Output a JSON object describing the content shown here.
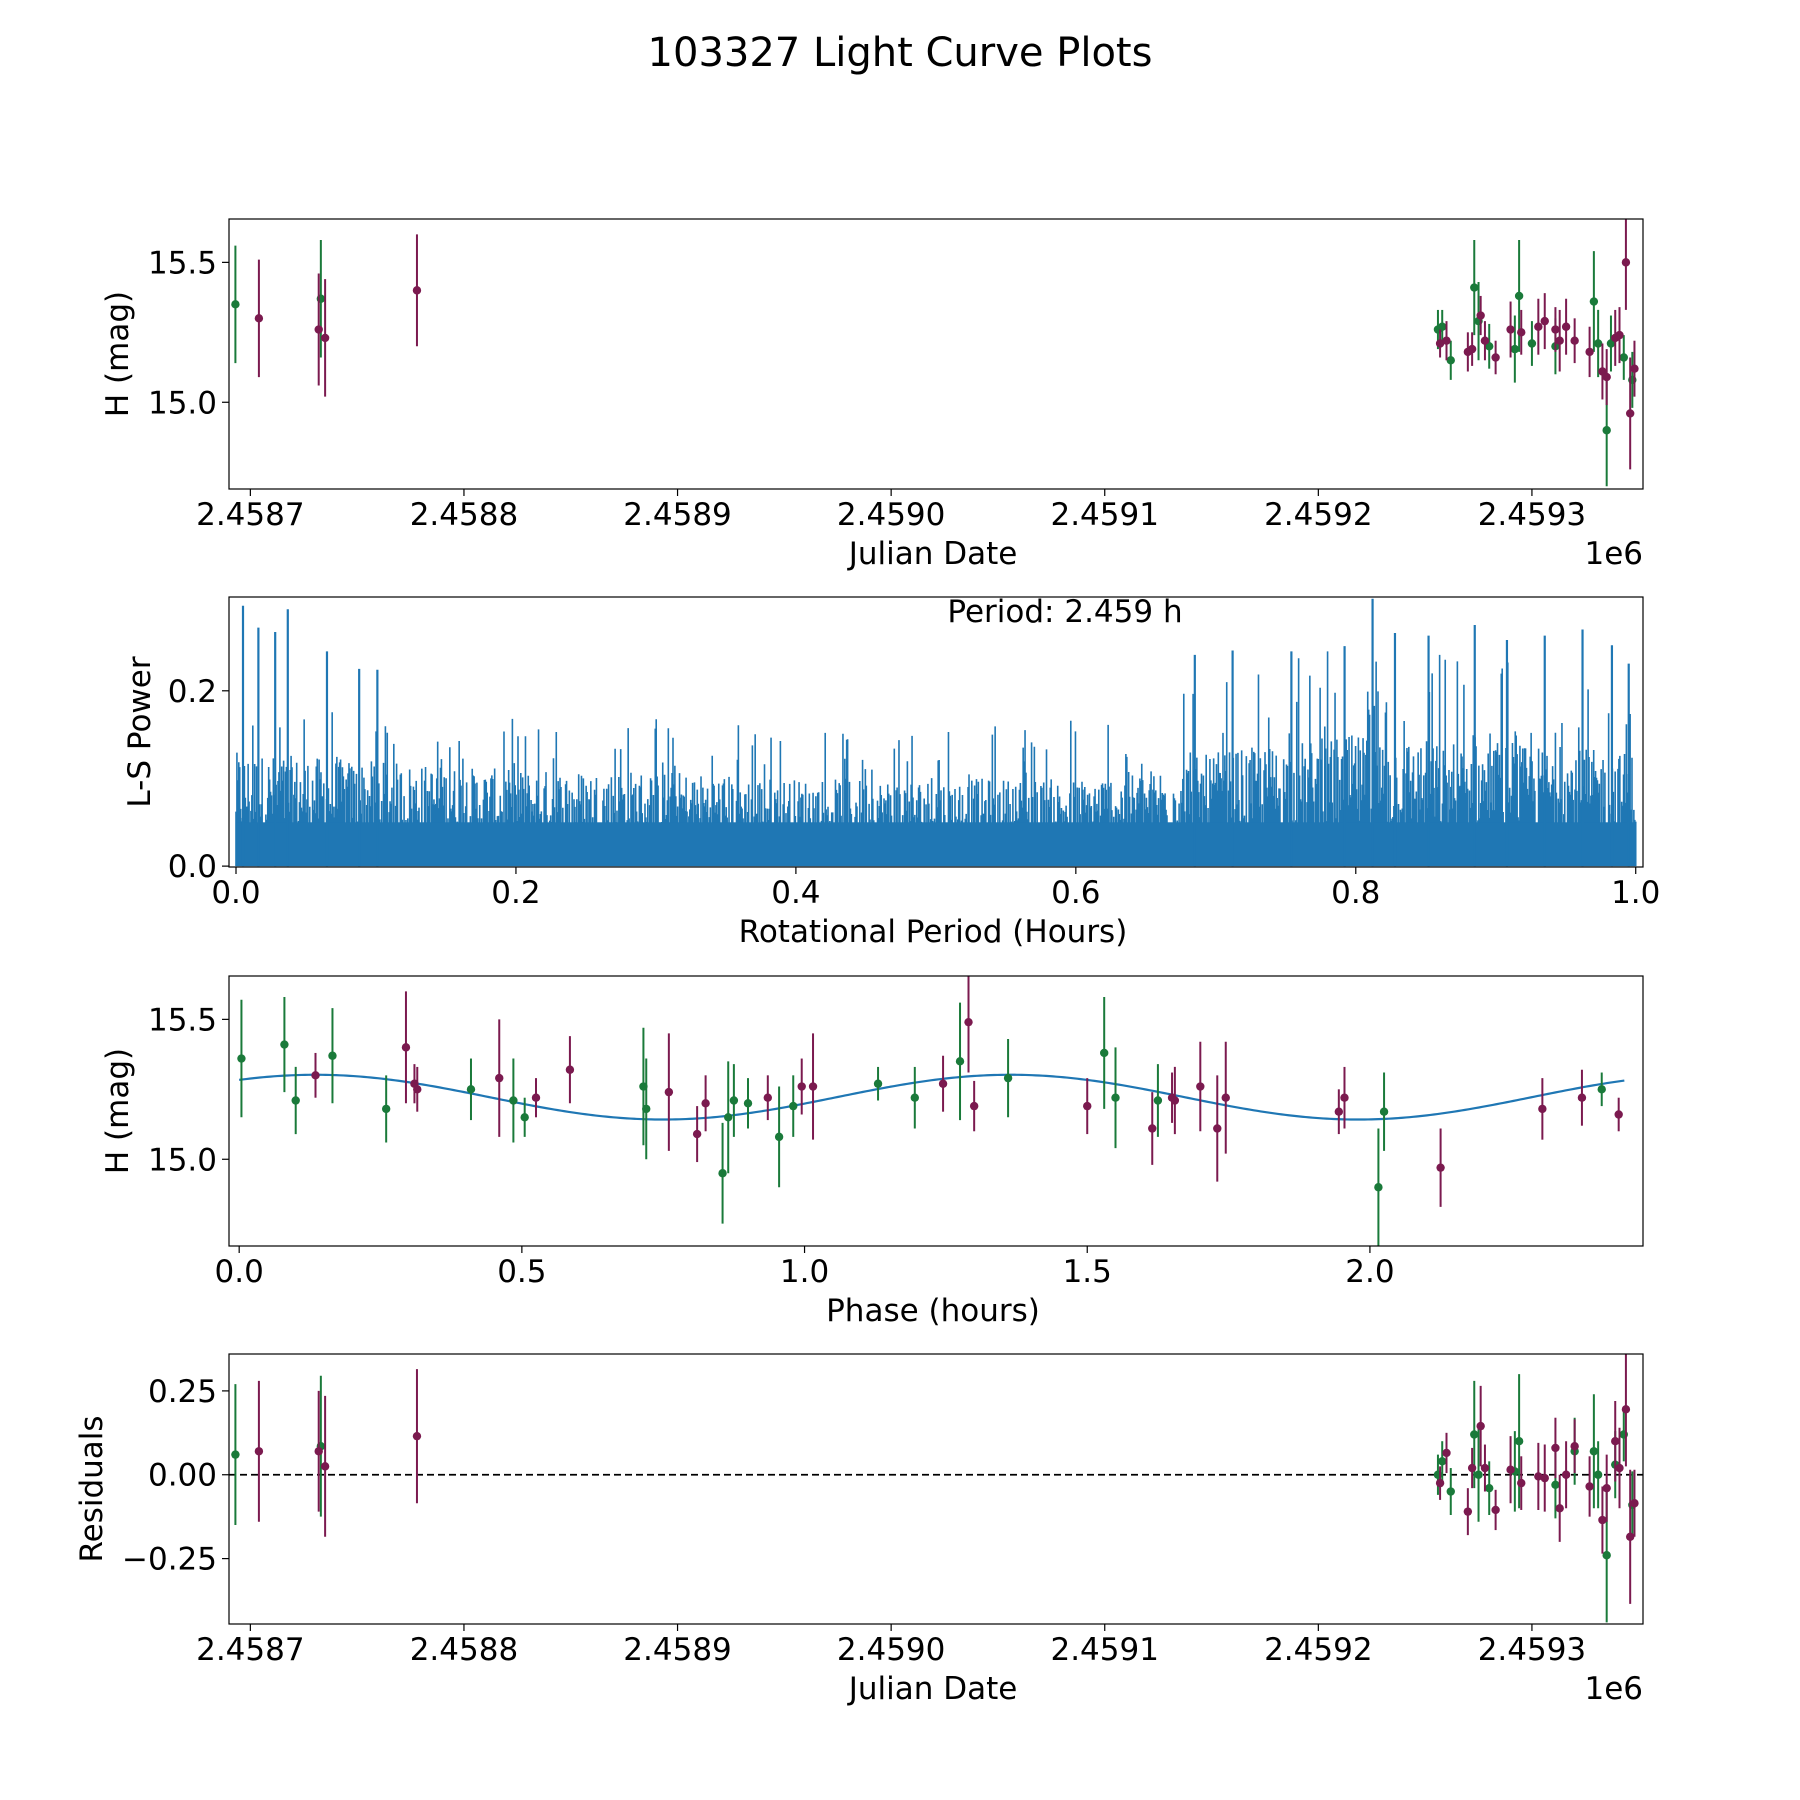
{
  "figure": {
    "title": "103327 Light Curve Plots"
  },
  "colors": {
    "green": "#1a7a3a",
    "maroon": "#7b1a4f",
    "blue": "#1f77b4",
    "black": "#000000"
  },
  "chart_data": [
    {
      "id": "lightcurve",
      "type": "scatter",
      "xlabel": "Julian Date",
      "ylabel": "H (mag)",
      "x_offset_label": "1e6",
      "xlim": [
        2.45869,
        2.459352
      ],
      "ylim": [
        14.69,
        15.655
      ],
      "xticks": [
        2.4587,
        2.4588,
        2.4589,
        2.459,
        2.4591,
        2.4592,
        2.4593
      ],
      "xtick_labels": [
        "2.4587",
        "2.4588",
        "2.4589",
        "2.4590",
        "2.4591",
        "2.4592",
        "2.4593"
      ],
      "yticks": [
        15.0,
        15.5
      ],
      "ytick_labels": [
        "15.0",
        "15.5"
      ],
      "series": [
        {
          "name": "green",
          "color": "green",
          "points": [
            [
              2.458693,
              15.35,
              0.21
            ],
            [
              2.458733,
              15.37,
              0.21
            ],
            [
              2.459256,
              15.26,
              0.07
            ],
            [
              2.459258,
              15.27,
              0.06
            ],
            [
              2.459262,
              15.15,
              0.07
            ],
            [
              2.459273,
              15.41,
              0.17
            ],
            [
              2.459275,
              15.29,
              0.14
            ],
            [
              2.45928,
              15.2,
              0.08
            ],
            [
              2.459292,
              15.19,
              0.12
            ],
            [
              2.459294,
              15.38,
              0.2
            ],
            [
              2.4593,
              15.21,
              0.08
            ],
            [
              2.459311,
              15.2,
              0.1
            ],
            [
              2.459329,
              15.36,
              0.18
            ],
            [
              2.459331,
              15.21,
              0.12
            ],
            [
              2.459335,
              14.9,
              0.2
            ],
            [
              2.459343,
              15.16,
              0.08
            ],
            [
              2.459347,
              15.08,
              0.1
            ],
            [
              2.459337,
              15.21,
              0.1
            ]
          ]
        },
        {
          "name": "maroon",
          "color": "maroon",
          "points": [
            [
              2.458704,
              15.3,
              0.21
            ],
            [
              2.458732,
              15.26,
              0.2
            ],
            [
              2.458735,
              15.23,
              0.21
            ],
            [
              2.458778,
              15.4,
              0.2
            ],
            [
              2.459257,
              15.21,
              0.05
            ],
            [
              2.45926,
              15.22,
              0.07
            ],
            [
              2.45927,
              15.18,
              0.07
            ],
            [
              2.459272,
              15.19,
              0.06
            ],
            [
              2.459276,
              15.31,
              0.07
            ],
            [
              2.459278,
              15.22,
              0.07
            ],
            [
              2.459283,
              15.16,
              0.06
            ],
            [
              2.45929,
              15.26,
              0.1
            ],
            [
              2.459295,
              15.25,
              0.08
            ],
            [
              2.459303,
              15.27,
              0.1
            ],
            [
              2.459306,
              15.29,
              0.1
            ],
            [
              2.459311,
              15.26,
              0.08
            ],
            [
              2.459313,
              15.22,
              0.11
            ],
            [
              2.459316,
              15.27,
              0.1
            ],
            [
              2.45932,
              15.22,
              0.08
            ],
            [
              2.459327,
              15.18,
              0.09
            ],
            [
              2.459333,
              15.11,
              0.1
            ],
            [
              2.459335,
              15.09,
              0.1
            ],
            [
              2.459339,
              15.23,
              0.1
            ],
            [
              2.459341,
              15.24,
              0.1
            ],
            [
              2.459344,
              15.5,
              0.17
            ],
            [
              2.459346,
              14.96,
              0.2
            ],
            [
              2.459348,
              15.12,
              0.1
            ]
          ]
        }
      ]
    },
    {
      "id": "periodogram",
      "type": "line",
      "xlabel": "Rotational Period (Hours)",
      "ylabel": "L-S Power",
      "annotation": "Period: 2.459 h",
      "xlim": [
        -0.005,
        1.0052
      ],
      "ylim": [
        -0.001,
        0.307
      ],
      "xticks": [
        0,
        0.2,
        0.4,
        0.6,
        0.8,
        1.0
      ],
      "xtick_labels": [
        "0.0",
        "0.2",
        "0.4",
        "0.6",
        "0.8",
        "1.0"
      ],
      "yticks": [
        0,
        0.2
      ],
      "ytick_labels": [
        "0.0",
        "0.2"
      ],
      "x_range": [
        0,
        1.0
      ],
      "envelope": {
        "x": [
          0,
          0.1,
          0.2,
          0.3,
          0.4,
          0.5,
          0.6,
          0.65,
          0.7,
          0.8,
          0.9,
          1.0
        ],
        "typical_peak": [
          0.13,
          0.12,
          0.11,
          0.11,
          0.1,
          0.1,
          0.1,
          0.11,
          0.13,
          0.15,
          0.14,
          0.13
        ],
        "max_peak": [
          0.2,
          0.17,
          0.17,
          0.17,
          0.16,
          0.16,
          0.17,
          0.19,
          0.23,
          0.25,
          0.24,
          0.22
        ]
      },
      "marked_peaks": [
        [
          0.005,
          0.297
        ],
        [
          0.016,
          0.272
        ],
        [
          0.028,
          0.267
        ],
        [
          0.037,
          0.293
        ],
        [
          0.065,
          0.245
        ],
        [
          0.088,
          0.225
        ],
        [
          0.101,
          0.224
        ],
        [
          0.685,
          0.241
        ],
        [
          0.712,
          0.246
        ],
        [
          0.754,
          0.245
        ],
        [
          0.792,
          0.251
        ],
        [
          0.812,
          0.305
        ],
        [
          0.828,
          0.266
        ],
        [
          0.852,
          0.263
        ],
        [
          0.885,
          0.275
        ],
        [
          0.908,
          0.258
        ],
        [
          0.935,
          0.263
        ],
        [
          0.962,
          0.27
        ],
        [
          0.983,
          0.252
        ],
        [
          0.995,
          0.231
        ]
      ]
    },
    {
      "id": "phased",
      "type": "scatter",
      "xlabel": "Phase (hours)",
      "ylabel": "H (mag)",
      "xlim": [
        -0.018,
        2.483
      ],
      "ylim": [
        14.69,
        15.655
      ],
      "xticks": [
        0,
        0.5,
        1.0,
        1.5,
        2.0
      ],
      "xtick_labels": [
        "0.0",
        "0.5",
        "1.0",
        "1.5",
        "2.0"
      ],
      "yticks": [
        15.0,
        15.5
      ],
      "ytick_labels": [
        "15.0",
        "15.5"
      ],
      "model": {
        "mean": 15.222,
        "amplitude": 0.08,
        "period": 1.2295,
        "phase_of_max": 0.135
      },
      "series": [
        {
          "name": "green",
          "color": "green",
          "points": [
            [
              0.004,
              15.36,
              0.21
            ],
            [
              0.08,
              15.41,
              0.17
            ],
            [
              0.1,
              15.21,
              0.12
            ],
            [
              0.165,
              15.37,
              0.17
            ],
            [
              0.26,
              15.18,
              0.12
            ],
            [
              0.41,
              15.25,
              0.11
            ],
            [
              0.485,
              15.21,
              0.15
            ],
            [
              0.505,
              15.15,
              0.07
            ],
            [
              0.715,
              15.26,
              0.21
            ],
            [
              0.72,
              15.18,
              0.18
            ],
            [
              0.855,
              14.95,
              0.18
            ],
            [
              0.865,
              15.15,
              0.2
            ],
            [
              0.875,
              15.21,
              0.13
            ],
            [
              0.9,
              15.2,
              0.09
            ],
            [
              0.955,
              15.08,
              0.18
            ],
            [
              0.98,
              15.19,
              0.11
            ],
            [
              1.13,
              15.27,
              0.06
            ],
            [
              1.195,
              15.22,
              0.11
            ],
            [
              1.275,
              15.35,
              0.21
            ],
            [
              1.36,
              15.29,
              0.14
            ],
            [
              1.53,
              15.38,
              0.2
            ],
            [
              1.55,
              15.22,
              0.18
            ],
            [
              1.625,
              15.21,
              0.13
            ],
            [
              2.015,
              14.9,
              0.21
            ],
            [
              2.025,
              15.17,
              0.14
            ],
            [
              2.41,
              15.25,
              0.06
            ]
          ]
        },
        {
          "name": "maroon",
          "color": "maroon",
          "points": [
            [
              0.135,
              15.3,
              0.08
            ],
            [
              0.295,
              15.4,
              0.2
            ],
            [
              0.31,
              15.27,
              0.07
            ],
            [
              0.315,
              15.25,
              0.08
            ],
            [
              0.46,
              15.29,
              0.21
            ],
            [
              0.525,
              15.22,
              0.07
            ],
            [
              0.585,
              15.32,
              0.12
            ],
            [
              0.76,
              15.24,
              0.21
            ],
            [
              0.81,
              15.09,
              0.1
            ],
            [
              0.825,
              15.2,
              0.1
            ],
            [
              0.935,
              15.22,
              0.08
            ],
            [
              0.995,
              15.26,
              0.1
            ],
            [
              1.015,
              15.26,
              0.19
            ],
            [
              1.245,
              15.27,
              0.1
            ],
            [
              1.29,
              15.49,
              0.18
            ],
            [
              1.3,
              15.19,
              0.09
            ],
            [
              1.5,
              15.19,
              0.1
            ],
            [
              1.615,
              15.11,
              0.13
            ],
            [
              1.65,
              15.22,
              0.09
            ],
            [
              1.655,
              15.21,
              0.12
            ],
            [
              1.7,
              15.26,
              0.16
            ],
            [
              1.73,
              15.11,
              0.19
            ],
            [
              1.745,
              15.22,
              0.2
            ],
            [
              1.945,
              15.17,
              0.08
            ],
            [
              1.955,
              15.22,
              0.11
            ],
            [
              2.125,
              14.97,
              0.14
            ],
            [
              2.305,
              15.18,
              0.11
            ],
            [
              2.375,
              15.22,
              0.1
            ],
            [
              2.44,
              15.16,
              0.06
            ]
          ]
        }
      ]
    },
    {
      "id": "residuals",
      "type": "scatter",
      "xlabel": "Julian Date",
      "ylabel": "Residuals",
      "x_offset_label": "1e6",
      "xlim": [
        2.45869,
        2.459352
      ],
      "ylim": [
        -0.445,
        0.36
      ],
      "xticks": [
        2.4587,
        2.4588,
        2.4589,
        2.459,
        2.4591,
        2.4592,
        2.4593
      ],
      "xtick_labels": [
        "2.4587",
        "2.4588",
        "2.4589",
        "2.4590",
        "2.4591",
        "2.4592",
        "2.4593"
      ],
      "yticks": [
        -0.25,
        0,
        0.25
      ],
      "ytick_labels": [
        "−0.25",
        "0.00",
        "0.25"
      ],
      "reference_line": 0,
      "series": [
        {
          "name": "green",
          "color": "green",
          "points": [
            [
              2.458693,
              0.06,
              0.21
            ],
            [
              2.458733,
              0.085,
              0.21
            ],
            [
              2.459256,
              0.0,
              0.06
            ],
            [
              2.459258,
              0.04,
              0.06
            ],
            [
              2.459262,
              -0.05,
              0.07
            ],
            [
              2.459273,
              0.12,
              0.16
            ],
            [
              2.459275,
              0.0,
              0.14
            ],
            [
              2.45928,
              -0.04,
              0.08
            ],
            [
              2.459292,
              0.01,
              0.12
            ],
            [
              2.459294,
              0.1,
              0.2
            ],
            [
              2.459311,
              -0.03,
              0.1
            ],
            [
              2.45932,
              0.07,
              0.1
            ],
            [
              2.459329,
              0.07,
              0.17
            ],
            [
              2.459331,
              0.0,
              0.1
            ],
            [
              2.459335,
              -0.24,
              0.2
            ],
            [
              2.459339,
              0.03,
              0.1
            ],
            [
              2.459343,
              0.12,
              0.08
            ],
            [
              2.459347,
              -0.09,
              0.1
            ]
          ]
        },
        {
          "name": "maroon",
          "color": "maroon",
          "points": [
            [
              2.458704,
              0.07,
              0.21
            ],
            [
              2.458732,
              0.07,
              0.18
            ],
            [
              2.458735,
              0.025,
              0.21
            ],
            [
              2.458778,
              0.115,
              0.2
            ],
            [
              2.459257,
              -0.025,
              0.05
            ],
            [
              2.45926,
              0.065,
              0.06
            ],
            [
              2.45927,
              -0.11,
              0.07
            ],
            [
              2.459272,
              0.02,
              0.06
            ],
            [
              2.459276,
              0.145,
              0.12
            ],
            [
              2.459278,
              0.02,
              0.07
            ],
            [
              2.459283,
              -0.105,
              0.06
            ],
            [
              2.45929,
              0.015,
              0.1
            ],
            [
              2.459295,
              -0.025,
              0.08
            ],
            [
              2.459303,
              -0.005,
              0.1
            ],
            [
              2.459306,
              -0.01,
              0.1
            ],
            [
              2.459311,
              0.08,
              0.09
            ],
            [
              2.459313,
              -0.1,
              0.1
            ],
            [
              2.459316,
              0.0,
              0.1
            ],
            [
              2.45932,
              0.085,
              0.08
            ],
            [
              2.459327,
              -0.035,
              0.09
            ],
            [
              2.459333,
              -0.135,
              0.1
            ],
            [
              2.459335,
              -0.04,
              0.1
            ],
            [
              2.459339,
              0.1,
              0.12
            ],
            [
              2.459341,
              0.02,
              0.12
            ],
            [
              2.459344,
              0.195,
              0.17
            ],
            [
              2.459346,
              -0.185,
              0.2
            ],
            [
              2.459348,
              -0.085,
              0.1
            ]
          ]
        }
      ]
    }
  ]
}
